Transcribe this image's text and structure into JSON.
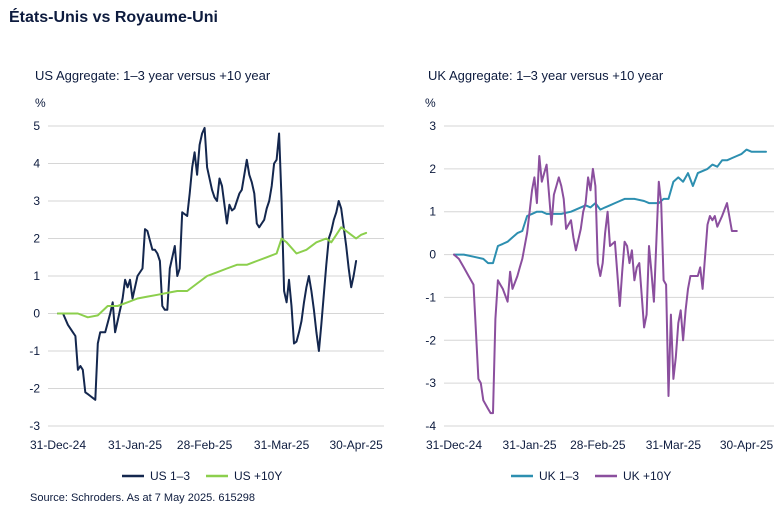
{
  "title": "États-Unis vs Royaume-Uni",
  "source": "Source: Schroders. As at 7 May 2025. 615298",
  "colors": {
    "us13": "#14274e",
    "us10": "#8ccf4d",
    "uk13": "#2d8fb0",
    "uk10": "#8b4f9e",
    "grid": "#d6d6d6",
    "text": "#0d1b3e"
  },
  "chart_data": [
    {
      "type": "line",
      "title": "US Aggregate: 1–3 year versus +10 year",
      "ylabel": "%",
      "xlabel": "",
      "ylim": [
        -3,
        5
      ],
      "yticks": [
        -3,
        -2,
        -1,
        0,
        1,
        2,
        3,
        4,
        5
      ],
      "x_domain": [
        0,
        128
      ],
      "xticks": [
        {
          "x": 0,
          "label": "31-Dec-24"
        },
        {
          "x": 31,
          "label": "31-Jan-25"
        },
        {
          "x": 59,
          "label": "28-Feb-25"
        },
        {
          "x": 90,
          "label": "31-Mar-25"
        },
        {
          "x": 120,
          "label": "30-Apr-25"
        }
      ],
      "legend": "bottom",
      "series": [
        {
          "name": "US 1–3",
          "color_key": "us13",
          "x": [
            0,
            2,
            4,
            6,
            7,
            8,
            9,
            10,
            11,
            12,
            13,
            14,
            15,
            16,
            17,
            18,
            19,
            21,
            22,
            23,
            24,
            26,
            27,
            28,
            29,
            30,
            32,
            34,
            35,
            36,
            38,
            39,
            40,
            41,
            42,
            43,
            44,
            45,
            47,
            48,
            49,
            50,
            52,
            53,
            54,
            55,
            56,
            57,
            58,
            59,
            60,
            62,
            63,
            64,
            65,
            66,
            68,
            69,
            70,
            71,
            72,
            73,
            74,
            76,
            77,
            78,
            79,
            80,
            81,
            82,
            83,
            84,
            85,
            86,
            87,
            88,
            89,
            90,
            91,
            92,
            93,
            94,
            95,
            96,
            97,
            98,
            99,
            100,
            101,
            102,
            103,
            104,
            105,
            106,
            107,
            108,
            109,
            110,
            111,
            112,
            113,
            114,
            115,
            116,
            117,
            118,
            119,
            120,
            121,
            122,
            123,
            124,
            125,
            126,
            127,
            128
          ],
          "values": [
            0,
            0,
            -0.3,
            -0.5,
            -0.6,
            -1.5,
            -1.4,
            -1.5,
            -2.1,
            -2.15,
            -2.2,
            -2.25,
            -2.3,
            -0.8,
            -0.5,
            -0.5,
            -0.5,
            0,
            0.3,
            -0.5,
            -0.2,
            0.4,
            0.9,
            0.7,
            0.9,
            0.4,
            1,
            1.2,
            2.25,
            2.2,
            1.7,
            1.7,
            1.6,
            1.4,
            0.2,
            0.1,
            0.1,
            1.2,
            1.8,
            1,
            1.2,
            2.7,
            2.6,
            3.2,
            3.9,
            4.3,
            3.7,
            4.5,
            4.8,
            4.95,
            3.9,
            3.3,
            3.1,
            3,
            3.6,
            3.4,
            2.4,
            2.9,
            2.75,
            2.8,
            3,
            3.2,
            3.3,
            4.1,
            3.7,
            3.5,
            3.2,
            2.4,
            2.3,
            2.4,
            2.5,
            2.8,
            3,
            3.4,
            4,
            4.1,
            4.8,
            3,
            0.6,
            0.3,
            0.9,
            0.2,
            -0.8,
            -0.75,
            -0.5,
            -0.2,
            0.3,
            0.7,
            1,
            0.6,
            0.1,
            -0.5,
            -1,
            -0.3,
            0.5,
            1.3,
            2,
            2.2,
            2.5,
            2.7,
            3,
            2.8,
            2.3,
            1.8,
            1.2,
            0.7,
            1,
            1.4,
            null,
            null,
            null,
            null,
            null,
            null,
            null,
            null
          ]
        },
        {
          "name": "US +10Y",
          "color_key": "us10",
          "x": [
            0,
            4,
            8,
            12,
            16,
            20,
            24,
            28,
            32,
            36,
            40,
            44,
            48,
            52,
            56,
            60,
            64,
            68,
            72,
            76,
            80,
            84,
            88,
            90,
            92,
            96,
            100,
            104,
            106,
            108,
            110,
            112,
            114,
            116,
            118,
            120,
            122,
            124
          ],
          "values": [
            0,
            0,
            0,
            -0.1,
            -0.05,
            0.2,
            0.2,
            0.3,
            0.4,
            0.45,
            0.5,
            0.55,
            0.6,
            0.6,
            0.8,
            1.0,
            1.1,
            1.2,
            1.3,
            1.3,
            1.4,
            1.5,
            1.6,
            2.0,
            1.9,
            1.6,
            1.7,
            1.9,
            1.95,
            2.0,
            1.9,
            2.1,
            2.3,
            2.2,
            2.1,
            2.0,
            2.1,
            2.15
          ]
        }
      ]
    },
    {
      "type": "line",
      "title": "UK Aggregate: 1–3 year versus +10 year",
      "ylabel": "%",
      "xlabel": "",
      "ylim": [
        -4,
        3
      ],
      "yticks": [
        -4,
        -3,
        -2,
        -1,
        0,
        1,
        2,
        3
      ],
      "x_domain": [
        0,
        128
      ],
      "xticks": [
        {
          "x": 0,
          "label": "31-Dec-24"
        },
        {
          "x": 31,
          "label": "31-Jan-25"
        },
        {
          "x": 59,
          "label": "28-Feb-25"
        },
        {
          "x": 90,
          "label": "31-Mar-25"
        },
        {
          "x": 120,
          "label": "30-Apr-25"
        }
      ],
      "legend": "bottom",
      "series": [
        {
          "name": "UK 1–3",
          "color_key": "uk13",
          "x": [
            0,
            4,
            8,
            12,
            14,
            16,
            18,
            20,
            22,
            24,
            26,
            28,
            30,
            32,
            34,
            36,
            38,
            40,
            44,
            48,
            52,
            54,
            56,
            58,
            60,
            62,
            64,
            66,
            68,
            70,
            74,
            78,
            80,
            84,
            86,
            88,
            90,
            92,
            94,
            96,
            98,
            100,
            104,
            106,
            108,
            110,
            112,
            114,
            116,
            118,
            120,
            122,
            124,
            126,
            128
          ],
          "values": [
            0,
            0,
            -0.05,
            -0.1,
            -0.2,
            -0.2,
            0.2,
            0.25,
            0.3,
            0.4,
            0.5,
            0.55,
            0.9,
            0.95,
            1.0,
            1.0,
            0.95,
            0.95,
            0.95,
            1.0,
            1.1,
            1.15,
            1.1,
            1.2,
            1.05,
            1.1,
            1.15,
            1.2,
            1.25,
            1.3,
            1.3,
            1.25,
            1.2,
            1.2,
            1.3,
            1.3,
            1.7,
            1.8,
            1.7,
            1.9,
            1.6,
            1.9,
            2.0,
            2.1,
            2.05,
            2.2,
            2.2,
            2.25,
            2.3,
            2.35,
            2.45,
            2.4,
            2.4,
            2.4,
            2.4
          ]
        },
        {
          "name": "UK +10Y",
          "color_key": "uk10",
          "x": [
            0,
            2,
            4,
            6,
            8,
            10,
            11,
            12,
            14,
            15,
            16,
            17,
            18,
            19,
            20,
            22,
            23,
            24,
            26,
            27,
            28,
            30,
            31,
            32,
            33,
            34,
            35,
            36,
            37,
            38,
            40,
            41,
            42,
            43,
            44,
            45,
            46,
            48,
            49,
            50,
            52,
            53,
            54,
            55,
            56,
            57,
            58,
            59,
            60,
            61,
            62,
            63,
            64,
            66,
            68,
            69,
            70,
            71,
            72,
            73,
            74,
            75,
            76,
            78,
            79,
            80,
            81,
            82,
            84,
            85,
            86,
            87,
            88,
            89,
            90,
            91,
            92,
            93,
            94,
            95,
            96,
            97,
            98,
            100,
            101,
            102,
            104,
            105,
            106,
            107,
            108,
            110,
            112,
            114,
            115,
            116,
            117,
            118,
            119,
            120,
            121,
            122,
            123,
            124,
            126,
            128
          ],
          "values": [
            0,
            -0.1,
            -0.3,
            -0.5,
            -0.7,
            -2.9,
            -3.0,
            -3.4,
            -3.6,
            -3.7,
            -3.7,
            -1.5,
            -0.6,
            -0.7,
            -0.8,
            -1.1,
            -0.4,
            -0.8,
            -0.5,
            -0.3,
            -0.1,
            0.5,
            1.0,
            1.5,
            1.8,
            1.2,
            2.3,
            1.7,
            1.9,
            2.1,
            0.7,
            1.4,
            1.6,
            1.8,
            1.6,
            1.3,
            0.6,
            0.8,
            0.4,
            0.1,
            0.6,
            1.0,
            1.2,
            1.8,
            1.5,
            2.0,
            1.6,
            -0.2,
            -0.5,
            -0.2,
            0.5,
            1.0,
            0.2,
            0.3,
            -1.2,
            -0.4,
            0.3,
            0.2,
            -0.2,
            0.1,
            -0.6,
            -0.3,
            -0.2,
            -1.7,
            -1.4,
            0.2,
            -0.4,
            -1.1,
            1.7,
            1.2,
            -0.6,
            -0.7,
            -3.3,
            -1.4,
            -2.9,
            -2.4,
            -1.6,
            -1.3,
            -2.0,
            -1.3,
            -0.8,
            -0.5,
            -0.5,
            -0.5,
            -0.3,
            -0.8,
            0.7,
            0.9,
            0.8,
            0.9,
            0.65,
            0.9,
            1.2,
            0.55,
            0.55,
            0.55,
            null,
            null,
            null,
            null,
            null,
            null,
            null,
            null,
            null,
            null
          ]
        }
      ]
    }
  ]
}
